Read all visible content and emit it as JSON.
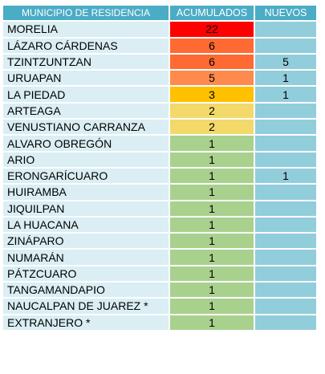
{
  "header": {
    "municipio": "MUNICIPIO DE RESIDENCIA",
    "acumulados": "ACUMULADOS",
    "nuevos": "NUEVOS"
  },
  "rows": [
    {
      "municipio": "MORELIA",
      "acumulados": "22",
      "nuevos": "",
      "color": "#ff0000"
    },
    {
      "municipio": "LÁZARO CÁRDENAS",
      "acumulados": "6",
      "nuevos": "",
      "color": "#ff6a33"
    },
    {
      "municipio": "TZINTZUNTZAN",
      "acumulados": "6",
      "nuevos": "5",
      "color": "#ff6a33"
    },
    {
      "municipio": "URUAPAN",
      "acumulados": "5",
      "nuevos": "1",
      "color": "#ff8a4d"
    },
    {
      "municipio": "LA PIEDAD",
      "acumulados": "3",
      "nuevos": "1",
      "color": "#ffc000"
    },
    {
      "municipio": "ARTEAGA",
      "acumulados": "2",
      "nuevos": "",
      "color": "#f2d96a"
    },
    {
      "municipio": "VENUSTIANO CARRANZA",
      "acumulados": "2",
      "nuevos": "",
      "color": "#f2d96a"
    },
    {
      "municipio": "ALVARO OBREGÓN",
      "acumulados": "1",
      "nuevos": "",
      "color": "#a9d18e"
    },
    {
      "municipio": "ARIO",
      "acumulados": "1",
      "nuevos": "",
      "color": "#a9d18e"
    },
    {
      "municipio": "ERONGARÍCUARO",
      "acumulados": "1",
      "nuevos": "1",
      "color": "#a9d18e"
    },
    {
      "municipio": "HUIRAMBA",
      "acumulados": "1",
      "nuevos": "",
      "color": "#a9d18e"
    },
    {
      "municipio": "JIQUILPAN",
      "acumulados": "1",
      "nuevos": "",
      "color": "#a9d18e"
    },
    {
      "municipio": "LA HUACANA",
      "acumulados": "1",
      "nuevos": "",
      "color": "#a9d18e"
    },
    {
      "municipio": "ZINÁPARO",
      "acumulados": "1",
      "nuevos": "",
      "color": "#a9d18e"
    },
    {
      "municipio": "NUMARÁN",
      "acumulados": "1",
      "nuevos": "",
      "color": "#a9d18e"
    },
    {
      "municipio": "PÁTZCUARO",
      "acumulados": "1",
      "nuevos": "",
      "color": "#a9d18e"
    },
    {
      "municipio": "TANGAMANDAPIO",
      "acumulados": "1",
      "nuevos": "",
      "color": "#a9d18e"
    },
    {
      "municipio": "NAUCALPAN DE JUAREZ *",
      "acumulados": "1",
      "nuevos": "",
      "color": "#a9d18e"
    },
    {
      "municipio": "EXTRANJERO *",
      "acumulados": "1",
      "nuevos": "",
      "color": "#a9d18e"
    }
  ]
}
